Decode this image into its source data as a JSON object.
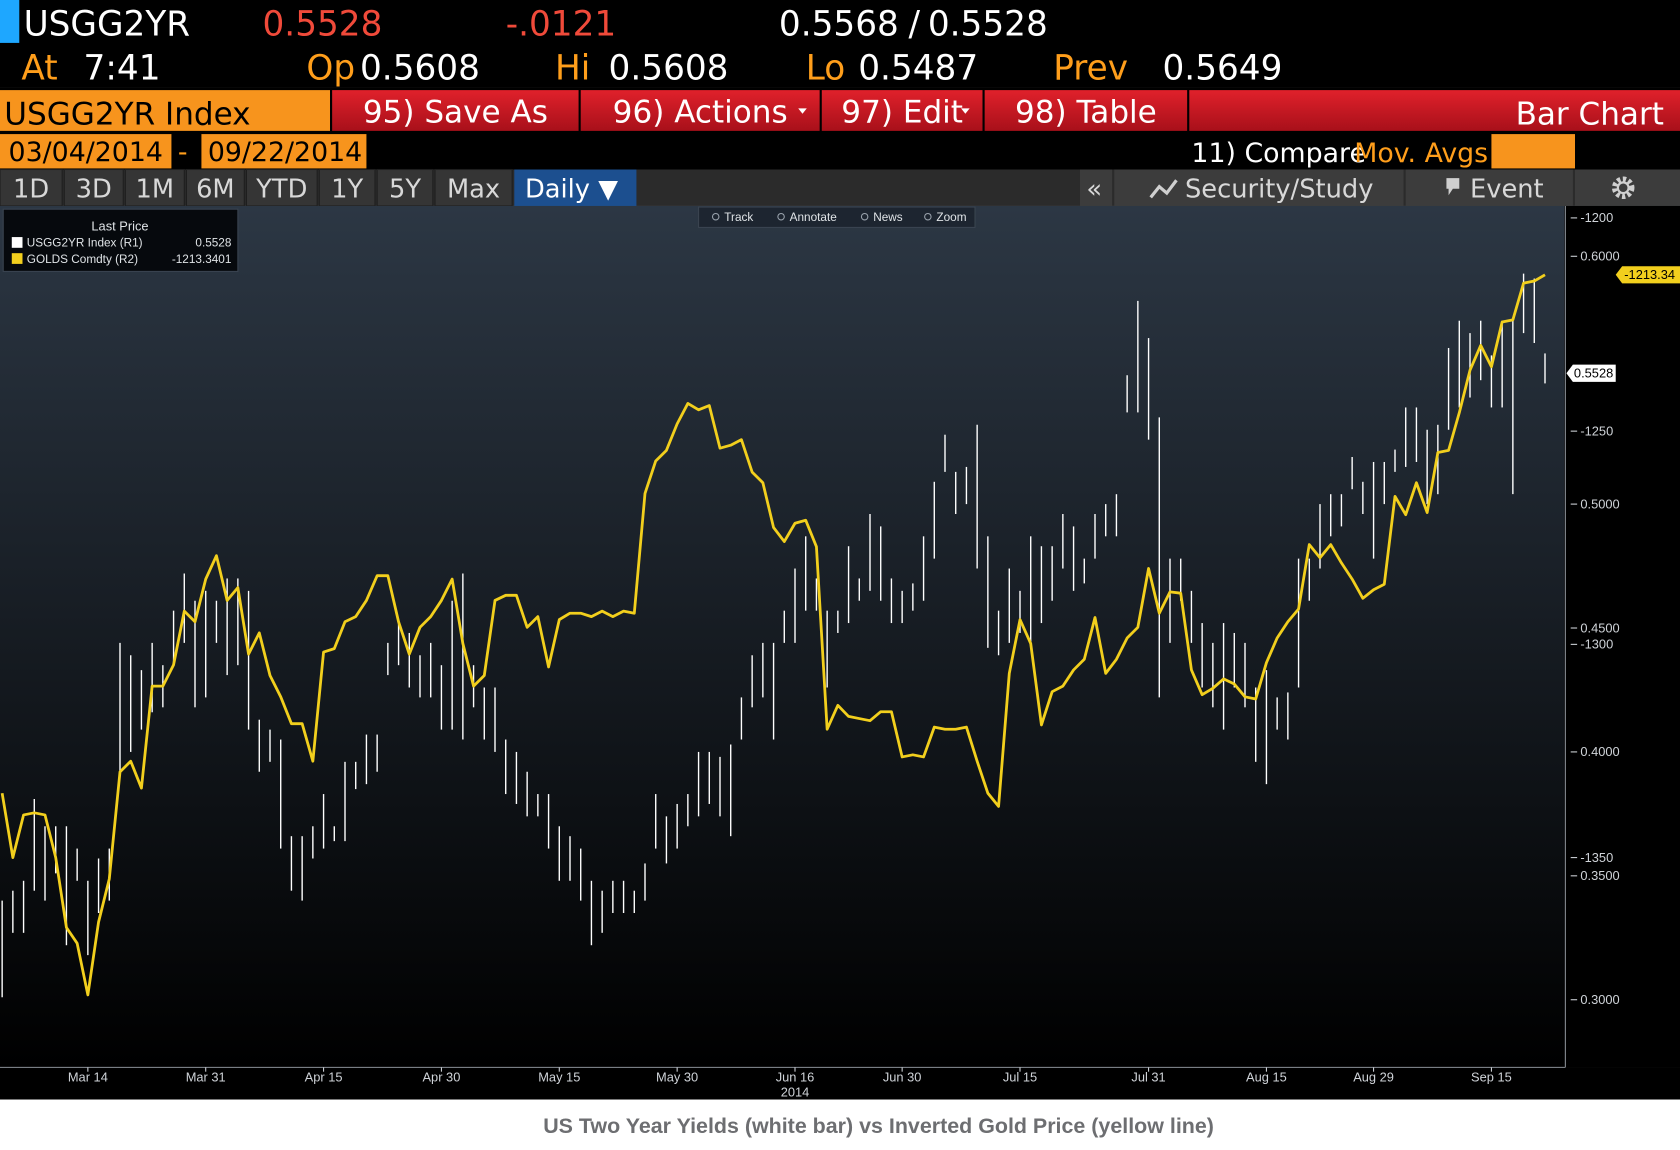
{
  "header": {
    "ticker": "USGG2YR",
    "last": "0.5528",
    "change": "-.0121",
    "bid": "0.5568",
    "separator": "/",
    "ask": "0.5528",
    "time_label": "At",
    "time": "7:41",
    "open_label": "Op",
    "open": "0.5608",
    "high_label": "Hi",
    "high": "0.5608",
    "low_label": "Lo",
    "low": "0.5487",
    "prev_label": "Prev",
    "prev": "0.5649"
  },
  "toolbar": {
    "security": "USGG2YR Index",
    "buttons": [
      "95) Save As",
      "96) Actions",
      "97) Edit",
      "98) Table"
    ],
    "view": "Bar Chart",
    "start_date": "03/04/2014",
    "date_separator": "-",
    "end_date": "09/22/2014",
    "compare": "11) Compare",
    "mov_avgs": "Mov. Avgs",
    "periods": [
      "1D",
      "3D",
      "1M",
      "6M",
      "YTD",
      "1Y",
      "5Y",
      "Max"
    ],
    "frequency": "Daily ▼",
    "collapse": "«",
    "security_study": "Security/Study",
    "event": "Event",
    "chart_tools": [
      "Track",
      "Annotate",
      "News",
      "Zoom"
    ]
  },
  "chart_data": {
    "type": "combo",
    "legend_title": "Last Price",
    "x_year": "2014",
    "categories": [
      null,
      null,
      null,
      null,
      null,
      null,
      null,
      null,
      "Mar 14",
      null,
      null,
      null,
      null,
      null,
      null,
      null,
      null,
      null,
      null,
      "Mar 31",
      null,
      null,
      null,
      null,
      null,
      null,
      null,
      null,
      null,
      null,
      "Apr 15",
      null,
      null,
      null,
      null,
      null,
      null,
      null,
      null,
      null,
      null,
      "Apr 30",
      null,
      null,
      null,
      null,
      null,
      null,
      null,
      null,
      null,
      null,
      "May 15",
      null,
      null,
      null,
      null,
      null,
      null,
      null,
      null,
      null,
      null,
      "May 30",
      null,
      null,
      null,
      null,
      null,
      null,
      null,
      null,
      null,
      null,
      "Jun 16",
      null,
      null,
      null,
      null,
      null,
      null,
      null,
      null,
      null,
      "Jun 30",
      null,
      null,
      null,
      null,
      null,
      null,
      null,
      null,
      null,
      null,
      "Jul 15",
      null,
      null,
      null,
      null,
      null,
      null,
      null,
      null,
      null,
      null,
      null,
      "Jul 31",
      null,
      null,
      null,
      null,
      null,
      null,
      null,
      null,
      null,
      null,
      "Aug 15",
      null,
      null,
      null,
      null,
      null,
      null,
      null,
      null,
      null,
      "Aug 29",
      null,
      null,
      null,
      null,
      null,
      null,
      null,
      null,
      null,
      null,
      "Sep 15",
      null,
      null,
      null,
      null,
      null
    ],
    "ylim": [
      0.2727,
      0.6203
    ],
    "yticks": [
      {
        "value": 0.6,
        "label": "0.6000"
      },
      {
        "value": 0.5,
        "label": "0.5000"
      },
      {
        "value": 0.45,
        "label": "0.4500"
      },
      {
        "value": 0.4,
        "label": "0.4000"
      },
      {
        "value": 0.35,
        "label": "0.3500"
      },
      {
        "value": 0.3,
        "label": "0.3000"
      }
    ],
    "y2lim": [
      -1399.2,
      -1197.2
    ],
    "y2ticks": [
      -1200,
      -1250,
      -1300,
      -1350
    ],
    "series": [
      {
        "name": "USGG2YR Index (R1)",
        "type": "bar",
        "color": "#ffffff",
        "last": 0.5528,
        "high": [
          0.34,
          0.344,
          0.348,
          0.381,
          0.37,
          0.37,
          0.37,
          0.361,
          0.348,
          0.357,
          0.361,
          0.444,
          0.439,
          0.433,
          0.444,
          0.435,
          0.457,
          0.472,
          0.461,
          0.465,
          0.461,
          0.47,
          0.47,
          0.465,
          0.413,
          0.409,
          0.405,
          0.366,
          0.366,
          0.37,
          0.383,
          0.37,
          0.396,
          0.396,
          0.407,
          0.407,
          0.444,
          0.452,
          0.448,
          0.439,
          0.444,
          0.435,
          0.461,
          0.472,
          0.435,
          0.426,
          0.426,
          0.405,
          0.4,
          0.392,
          0.383,
          0.383,
          0.37,
          0.366,
          0.361,
          0.348,
          0.344,
          0.348,
          0.348,
          0.344,
          0.355,
          0.383,
          0.374,
          0.379,
          0.383,
          0.4,
          0.4,
          0.398,
          0.403,
          0.422,
          0.439,
          0.444,
          0.444,
          0.457,
          0.474,
          0.487,
          0.47,
          0.457,
          0.457,
          0.483,
          0.47,
          0.496,
          0.491,
          0.47,
          0.465,
          0.468,
          0.487,
          0.509,
          0.528,
          0.513,
          0.515,
          0.532,
          0.487,
          0.457,
          0.474,
          0.465,
          0.487,
          0.483,
          0.483,
          0.496,
          0.491,
          0.478,
          0.496,
          0.5,
          0.504,
          0.552,
          0.582,
          0.567,
          0.535,
          0.478,
          0.478,
          0.465,
          0.452,
          0.444,
          0.452,
          0.448,
          0.444,
          0.426,
          0.433,
          0.422,
          0.424,
          0.478,
          0.478,
          0.5,
          0.504,
          0.504,
          0.519,
          0.509,
          0.517,
          0.517,
          0.522,
          0.539,
          0.539,
          0.53,
          0.532,
          0.563,
          0.574,
          0.569,
          0.574,
          0.56,
          0.574,
          0.574,
          0.593,
          0.591,
          0.5608
        ],
        "low": [
          0.301,
          0.327,
          0.327,
          0.344,
          0.34,
          0.351,
          0.322,
          0.348,
          0.318,
          0.335,
          0.34,
          0.392,
          0.4,
          0.409,
          0.416,
          0.418,
          0.435,
          0.444,
          0.418,
          0.422,
          0.444,
          0.431,
          0.435,
          0.409,
          0.392,
          0.396,
          0.361,
          0.344,
          0.34,
          0.357,
          0.361,
          0.364,
          0.364,
          0.385,
          0.387,
          0.392,
          0.431,
          0.435,
          0.426,
          0.422,
          0.422,
          0.409,
          0.409,
          0.405,
          0.418,
          0.405,
          0.4,
          0.383,
          0.379,
          0.374,
          0.374,
          0.361,
          0.348,
          0.348,
          0.34,
          0.322,
          0.327,
          0.335,
          0.335,
          0.335,
          0.34,
          0.361,
          0.355,
          0.361,
          0.37,
          0.374,
          0.379,
          0.374,
          0.366,
          0.405,
          0.418,
          0.422,
          0.405,
          0.444,
          0.444,
          0.457,
          0.457,
          0.426,
          0.448,
          0.452,
          0.461,
          0.465,
          0.461,
          0.452,
          0.452,
          0.457,
          0.461,
          0.478,
          0.513,
          0.496,
          0.5,
          0.474,
          0.442,
          0.439,
          0.444,
          0.448,
          0.444,
          0.452,
          0.461,
          0.474,
          0.465,
          0.468,
          0.478,
          0.487,
          0.487,
          0.537,
          0.537,
          0.526,
          0.422,
          0.444,
          0.461,
          0.444,
          0.426,
          0.418,
          0.409,
          0.426,
          0.418,
          0.396,
          0.387,
          0.409,
          0.405,
          0.426,
          0.461,
          0.474,
          0.487,
          0.491,
          0.506,
          0.496,
          0.478,
          0.5,
          0.513,
          0.515,
          0.517,
          0.5,
          0.504,
          0.53,
          0.539,
          0.543,
          0.55,
          0.539,
          0.539,
          0.504,
          0.569,
          0.565,
          0.5487
        ]
      },
      {
        "name": "GOLDS Comdty (R2)",
        "type": "line",
        "axis": "y2",
        "color": "#f2cf1d",
        "last_label": "-1213.34",
        "values": [
          -1334.9,
          -1350.0,
          -1340.0,
          -1339.5,
          -1340.0,
          -1350.0,
          -1366.4,
          -1370.1,
          -1382.2,
          -1365.1,
          -1355.0,
          -1329.9,
          -1327.4,
          -1333.7,
          -1309.8,
          -1309.8,
          -1304.8,
          -1292.2,
          -1294.7,
          -1284.7,
          -1279.2,
          -1289.7,
          -1286.7,
          -1302.3,
          -1297.3,
          -1307.3,
          -1312.3,
          -1318.6,
          -1318.6,
          -1327.4,
          -1301.8,
          -1301.0,
          -1294.7,
          -1293.5,
          -1289.7,
          -1283.9,
          -1283.9,
          -1294.7,
          -1302.3,
          -1296.0,
          -1293.5,
          -1289.7,
          -1284.7,
          -1299.8,
          -1309.8,
          -1307.3,
          -1289.7,
          -1288.5,
          -1288.5,
          -1296.0,
          -1293.5,
          -1305.3,
          -1294.2,
          -1292.7,
          -1292.7,
          -1293.5,
          -1292.2,
          -1293.5,
          -1292.2,
          -1292.7,
          -1264.6,
          -1257.0,
          -1254.5,
          -1248.3,
          -1243.5,
          -1245.0,
          -1244.0,
          -1254.0,
          -1253.3,
          -1252.0,
          -1259.6,
          -1262.1,
          -1272.6,
          -1275.9,
          -1271.6,
          -1270.9,
          -1277.1,
          -1319.9,
          -1314.3,
          -1316.9,
          -1317.4,
          -1317.9,
          -1315.8,
          -1315.8,
          -1326.4,
          -1325.9,
          -1326.4,
          -1319.4,
          -1319.9,
          -1319.9,
          -1319.4,
          -1327.4,
          -1334.9,
          -1338.0,
          -1306.8,
          -1294.2,
          -1299.8,
          -1318.9,
          -1311.1,
          -1309.8,
          -1306.0,
          -1303.5,
          -1293.7,
          -1306.8,
          -1303.5,
          -1298.5,
          -1296.0,
          -1282.2,
          -1292.7,
          -1287.7,
          -1288.0,
          -1306.0,
          -1311.8,
          -1310.3,
          -1308.1,
          -1309.3,
          -1312.3,
          -1312.8,
          -1304.3,
          -1298.5,
          -1294.7,
          -1291.7,
          -1276.6,
          -1279.7,
          -1276.6,
          -1280.9,
          -1284.7,
          -1289.2,
          -1287.2,
          -1285.9,
          -1265.3,
          -1269.6,
          -1262.1,
          -1269.1,
          -1255.0,
          -1254.5,
          -1245.7,
          -1235.7,
          -1229.9,
          -1234.9,
          -1224.4,
          -1223.9,
          -1215.3,
          -1214.8,
          -1213.3401
        ]
      }
    ]
  },
  "caption": "US Two Year Yields (white bar) vs Inverted Gold Price (yellow line)"
}
